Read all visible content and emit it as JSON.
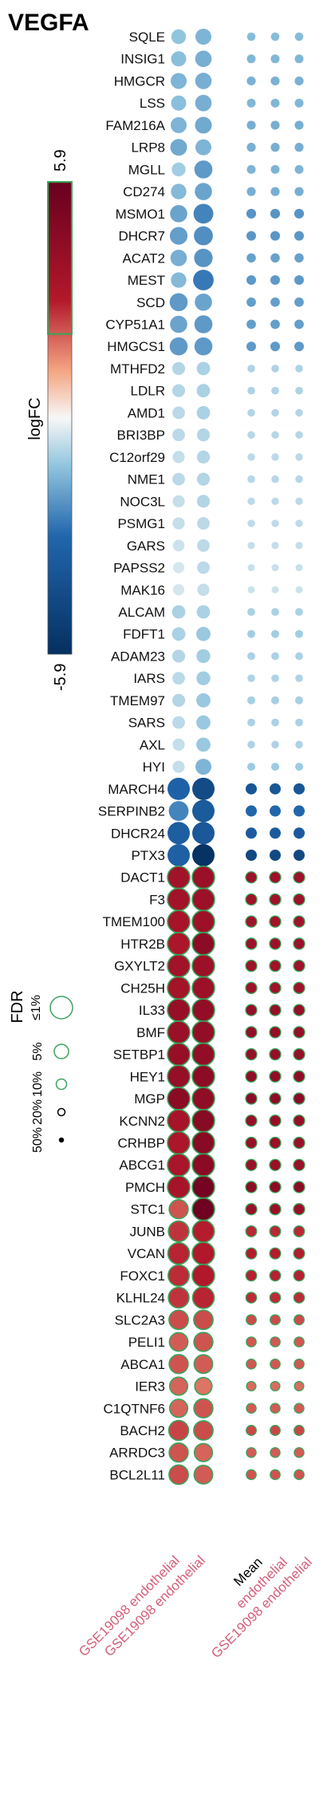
{
  "chart_data": {
    "type": "dotplot",
    "title": "VEGFA",
    "columns": [
      {
        "label": "GSE19098 endothelial",
        "group": "individual"
      },
      {
        "label": "GSE19098 endothelial",
        "group": "individual"
      },
      {
        "label": "Mean",
        "group": "mean"
      },
      {
        "label": "endothelial",
        "group": "mean"
      },
      {
        "label": "GSE19098 endothelial",
        "group": "mean"
      }
    ],
    "column_colors": {
      "sample": "#d4607a",
      "mean": "#000000"
    },
    "colorbar": {
      "label": "logFC",
      "max_label": "5.9",
      "min_label": "-5.9",
      "range": [
        -5.9,
        5.9
      ],
      "marked_value": 2.1
    },
    "fdr_legend": {
      "label": "FDR",
      "levels": [
        "50%",
        "20%",
        "10%",
        "5%",
        "≤1%"
      ],
      "outline_color": "#3aa35b"
    },
    "rows": [
      {
        "gene": "SQLE",
        "logfc": [
          -1.2,
          -1.5
        ],
        "sig": [
          false,
          false
        ]
      },
      {
        "gene": "INSIG1",
        "logfc": [
          -1.3,
          -1.6
        ],
        "sig": [
          false,
          false
        ]
      },
      {
        "gene": "HMGCR",
        "logfc": [
          -1.5,
          -1.6
        ],
        "sig": [
          false,
          false
        ]
      },
      {
        "gene": "LSS",
        "logfc": [
          -1.3,
          -1.6
        ],
        "sig": [
          false,
          false
        ]
      },
      {
        "gene": "FAM216A",
        "logfc": [
          -1.5,
          -1.7
        ],
        "sig": [
          false,
          false
        ]
      },
      {
        "gene": "LRP8",
        "logfc": [
          -1.7,
          -1.5
        ],
        "sig": [
          false,
          false
        ]
      },
      {
        "gene": "MGLL",
        "logfc": [
          -1.0,
          -2.0
        ],
        "sig": [
          false,
          false
        ]
      },
      {
        "gene": "CD274",
        "logfc": [
          -1.4,
          -1.8
        ],
        "sig": [
          false,
          false
        ]
      },
      {
        "gene": "MSMO1",
        "logfc": [
          -1.8,
          -2.4
        ],
        "sig": [
          false,
          false
        ]
      },
      {
        "gene": "DHCR7",
        "logfc": [
          -1.9,
          -2.2
        ],
        "sig": [
          false,
          false
        ]
      },
      {
        "gene": "ACAT2",
        "logfc": [
          -1.6,
          -2.1
        ],
        "sig": [
          false,
          false
        ]
      },
      {
        "gene": "MEST",
        "logfc": [
          -1.4,
          -2.6
        ],
        "sig": [
          false,
          false
        ]
      },
      {
        "gene": "SCD",
        "logfc": [
          -2.0,
          -1.8
        ],
        "sig": [
          false,
          false
        ]
      },
      {
        "gene": "CYP51A1",
        "logfc": [
          -1.8,
          -2.0
        ],
        "sig": [
          false,
          false
        ]
      },
      {
        "gene": "HMGCS1",
        "logfc": [
          -2.0,
          -2.0
        ],
        "sig": [
          false,
          false
        ]
      },
      {
        "gene": "MTHFD2",
        "logfc": [
          -0.8,
          -0.9
        ],
        "sig": [
          false,
          false
        ]
      },
      {
        "gene": "LDLR",
        "logfc": [
          -0.8,
          -0.9
        ],
        "sig": [
          false,
          false
        ]
      },
      {
        "gene": "AMD1",
        "logfc": [
          -0.7,
          -0.9
        ],
        "sig": [
          false,
          false
        ]
      },
      {
        "gene": "BRI3BP",
        "logfc": [
          -0.7,
          -0.8
        ],
        "sig": [
          false,
          false
        ]
      },
      {
        "gene": "C12orf29",
        "logfc": [
          -0.6,
          -0.8
        ],
        "sig": [
          false,
          false
        ]
      },
      {
        "gene": "NME1",
        "logfc": [
          -0.7,
          -0.8
        ],
        "sig": [
          false,
          false
        ]
      },
      {
        "gene": "NOC3L",
        "logfc": [
          -0.6,
          -0.8
        ],
        "sig": [
          false,
          false
        ]
      },
      {
        "gene": "PSMG1",
        "logfc": [
          -0.6,
          -0.7
        ],
        "sig": [
          false,
          false
        ]
      },
      {
        "gene": "GARS",
        "logfc": [
          -0.5,
          -0.7
        ],
        "sig": [
          false,
          false
        ]
      },
      {
        "gene": "PAPSS2",
        "logfc": [
          -0.4,
          -0.7
        ],
        "sig": [
          false,
          false
        ]
      },
      {
        "gene": "MAK16",
        "logfc": [
          -0.4,
          -0.6
        ],
        "sig": [
          false,
          false
        ]
      },
      {
        "gene": "ALCAM",
        "logfc": [
          -0.9,
          -0.9
        ],
        "sig": [
          false,
          false
        ]
      },
      {
        "gene": "FDFT1",
        "logfc": [
          -0.9,
          -1.1
        ],
        "sig": [
          false,
          false
        ]
      },
      {
        "gene": "ADAM23",
        "logfc": [
          -0.8,
          -1.0
        ],
        "sig": [
          false,
          false
        ]
      },
      {
        "gene": "IARS",
        "logfc": [
          -0.7,
          -1.0
        ],
        "sig": [
          false,
          false
        ]
      },
      {
        "gene": "TMEM97",
        "logfc": [
          -0.8,
          -1.1
        ],
        "sig": [
          false,
          false
        ]
      },
      {
        "gene": "SARS",
        "logfc": [
          -0.7,
          -1.1
        ],
        "sig": [
          false,
          false
        ]
      },
      {
        "gene": "AXL",
        "logfc": [
          -0.6,
          -1.1
        ],
        "sig": [
          false,
          false
        ]
      },
      {
        "gene": "HYI",
        "logfc": [
          -0.6,
          -1.5
        ],
        "sig": [
          false,
          false
        ]
      },
      {
        "gene": "MARCH4",
        "logfc": [
          -3.2,
          -4.4
        ],
        "sig": [
          false,
          false
        ]
      },
      {
        "gene": "SERPINB2",
        "logfc": [
          -2.4,
          -3.6
        ],
        "sig": [
          false,
          false
        ]
      },
      {
        "gene": "DHCR24",
        "logfc": [
          -3.4,
          -3.7
        ],
        "sig": [
          false,
          false
        ]
      },
      {
        "gene": "PTX3",
        "logfc": [
          -3.3,
          -5.8
        ],
        "sig": [
          false,
          false
        ]
      },
      {
        "gene": "DACT1",
        "logfc": [
          3.6,
          3.9
        ],
        "sig": [
          true,
          true
        ]
      },
      {
        "gene": "F3",
        "logfc": [
          3.6,
          3.8
        ],
        "sig": [
          true,
          true
        ]
      },
      {
        "gene": "TMEM100",
        "logfc": [
          3.4,
          3.8
        ],
        "sig": [
          true,
          true
        ]
      },
      {
        "gene": "HTR2B",
        "logfc": [
          3.2,
          4.4
        ],
        "sig": [
          true,
          true
        ]
      },
      {
        "gene": "GXYLT2",
        "logfc": [
          3.6,
          3.8
        ],
        "sig": [
          true,
          true
        ]
      },
      {
        "gene": "CH25H",
        "logfc": [
          3.5,
          3.8
        ],
        "sig": [
          true,
          true
        ]
      },
      {
        "gene": "IL33",
        "logfc": [
          4.0,
          4.2
        ],
        "sig": [
          true,
          true
        ]
      },
      {
        "gene": "BMF",
        "logfc": [
          3.9,
          4.2
        ],
        "sig": [
          true,
          true
        ]
      },
      {
        "gene": "SETBP1",
        "logfc": [
          4.0,
          4.2
        ],
        "sig": [
          true,
          true
        ]
      },
      {
        "gene": "HEY1",
        "logfc": [
          4.1,
          4.4
        ],
        "sig": [
          true,
          true
        ]
      },
      {
        "gene": "MGP",
        "logfc": [
          4.5,
          4.3
        ],
        "sig": [
          true,
          true
        ]
      },
      {
        "gene": "KCNN2",
        "logfc": [
          3.4,
          4.6
        ],
        "sig": [
          true,
          true
        ]
      },
      {
        "gene": "CRHBP",
        "logfc": [
          3.2,
          4.6
        ],
        "sig": [
          true,
          true
        ]
      },
      {
        "gene": "ABCG1",
        "logfc": [
          3.3,
          4.5
        ],
        "sig": [
          true,
          true
        ]
      },
      {
        "gene": "PMCH",
        "logfc": [
          3.4,
          5.4
        ],
        "sig": [
          true,
          true
        ]
      },
      {
        "gene": "STC1",
        "logfc": [
          2.2,
          5.6
        ],
        "sig": [
          true,
          true
        ]
      },
      {
        "gene": "JUNB",
        "logfc": [
          2.6,
          2.9
        ],
        "sig": [
          true,
          true
        ]
      },
      {
        "gene": "VCAN",
        "logfc": [
          2.8,
          3.0
        ],
        "sig": [
          true,
          true
        ]
      },
      {
        "gene": "FOXC1",
        "logfc": [
          2.7,
          3.0
        ],
        "sig": [
          true,
          true
        ]
      },
      {
        "gene": "KLHL24",
        "logfc": [
          2.6,
          2.8
        ],
        "sig": [
          true,
          true
        ]
      },
      {
        "gene": "SLC2A3",
        "logfc": [
          2.3,
          2.3
        ],
        "sig": [
          true,
          true
        ]
      },
      {
        "gene": "PELI1",
        "logfc": [
          2.1,
          2.2
        ],
        "sig": [
          true,
          true
        ]
      },
      {
        "gene": "ABCA1",
        "logfc": [
          2.2,
          2.1
        ],
        "sig": [
          true,
          true
        ]
      },
      {
        "gene": "IER3",
        "logfc": [
          2.0,
          1.8
        ],
        "sig": [
          true,
          true
        ]
      },
      {
        "gene": "C1QTNF6",
        "logfc": [
          2.0,
          2.2
        ],
        "sig": [
          true,
          true
        ]
      },
      {
        "gene": "BACH2",
        "logfc": [
          2.4,
          2.3
        ],
        "sig": [
          true,
          true
        ]
      },
      {
        "gene": "ARRDC3",
        "logfc": [
          2.2,
          2.0
        ],
        "sig": [
          true,
          true
        ]
      },
      {
        "gene": "BCL2L11",
        "logfc": [
          2.3,
          2.1
        ],
        "sig": [
          true,
          true
        ]
      }
    ]
  }
}
